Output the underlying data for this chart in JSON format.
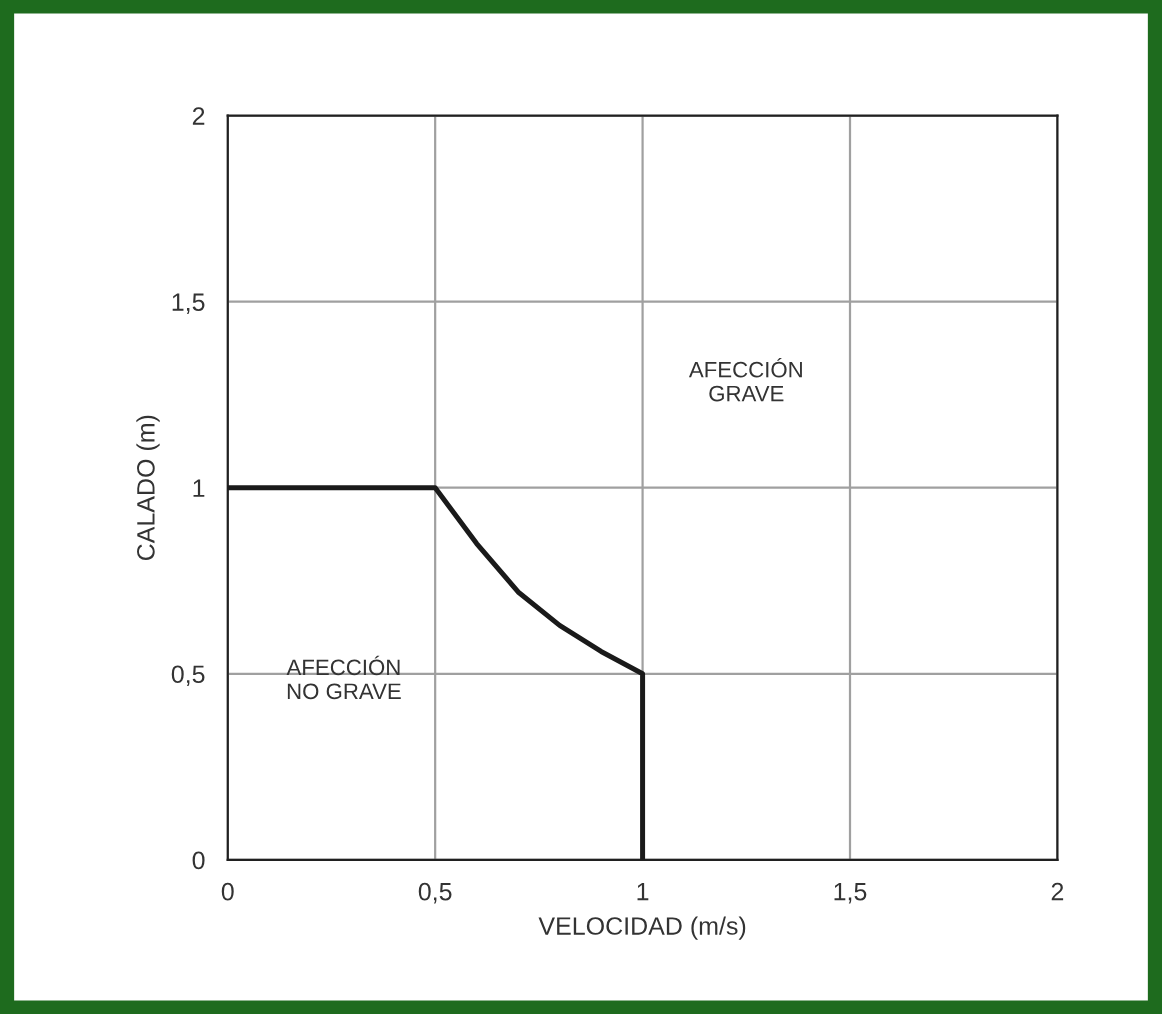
{
  "chart_data": {
    "type": "line",
    "xlabel": "VELOCIDAD (m/s)",
    "ylabel": "CALADO (m)",
    "x": [
      0,
      0.5,
      0.6,
      0.7,
      0.8,
      0.9,
      1,
      1
    ],
    "series": [
      {
        "color": "#1a1a1a",
        "values": [
          1,
          1,
          0.85,
          0.72,
          0.63,
          0.56,
          0.5,
          0
        ]
      }
    ],
    "xlim": [
      0,
      2
    ],
    "ylim": [
      0,
      2
    ],
    "xticks": [
      0,
      {
        "value": 0.5,
        "label": "0,5"
      },
      1,
      {
        "value": 1.5,
        "label": "1,5"
      },
      2
    ],
    "yticks": [
      0,
      {
        "value": 0.5,
        "label": "0,5"
      },
      1,
      {
        "value": 1.5,
        "label": "1,5"
      },
      2
    ],
    "grid": true,
    "marker": "none",
    "line_style": "solid",
    "annotations": [
      "AFECCIÓN\nGRAVE",
      "AFECCIÓN\nNO GRAVE"
    ]
  }
}
